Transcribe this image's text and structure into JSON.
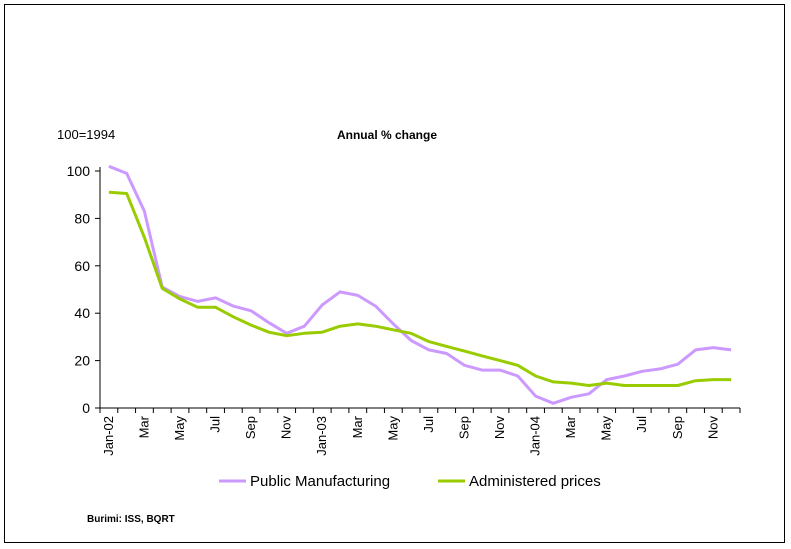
{
  "chart_data": {
    "type": "line",
    "title": "Annual % change",
    "index_note": "100=1994",
    "source": "Burimi: ISS, BQRT",
    "ylim": [
      0,
      100
    ],
    "yticks": [
      0,
      20,
      40,
      60,
      80,
      100
    ],
    "grid": false,
    "legend_position": "bottom",
    "categories": [
      "Jan-02",
      "Feb",
      "Mar",
      "Apr",
      "May",
      "Jun",
      "Jul",
      "Aug",
      "Sep",
      "Oct",
      "Nov",
      "Dec",
      "Jan-03",
      "Feb",
      "Mar",
      "Apr",
      "May",
      "Jun",
      "Jul",
      "Aug",
      "Sep",
      "Oct",
      "Nov",
      "Dec",
      "Jan-04",
      "Feb",
      "Mar",
      "Apr",
      "May",
      "Jun",
      "Jul",
      "Aug",
      "Sep",
      "Oct",
      "Nov",
      "Dec"
    ],
    "tick_labels": [
      "Jan-02",
      "Mar",
      "May",
      "Jul",
      "Sep",
      "Nov",
      "Jan-03",
      "Mar",
      "May",
      "Jul",
      "Sep",
      "Nov",
      "Jan-04",
      "Mar",
      "May",
      "Jul",
      "Sep",
      "Nov"
    ],
    "series": [
      {
        "name": "Public Manufacturing",
        "color": "#CC99FF",
        "values": [
          102,
          99,
          83,
          51,
          47,
          45,
          46.5,
          43,
          41,
          36,
          31.5,
          34.5,
          43.5,
          49,
          47.5,
          43,
          35.5,
          28.5,
          24.5,
          23,
          18,
          16,
          16,
          13.5,
          5,
          2,
          4.5,
          6,
          12,
          13.5,
          15.5,
          16.5,
          18.5,
          24.5,
          25.5,
          24.5
        ]
      },
      {
        "name": "Administered prices",
        "color": "#99CC00",
        "values": [
          91,
          90.5,
          72,
          50.5,
          46,
          42.5,
          42.5,
          38.5,
          35,
          32,
          30.5,
          31.5,
          32,
          34.5,
          35.5,
          34.5,
          33,
          31.5,
          28,
          26,
          24,
          22,
          20,
          18,
          13.5,
          11,
          10.5,
          9.5,
          10.5,
          9.5,
          9.5,
          9.5,
          9.5,
          11.5,
          12,
          12
        ]
      }
    ]
  }
}
